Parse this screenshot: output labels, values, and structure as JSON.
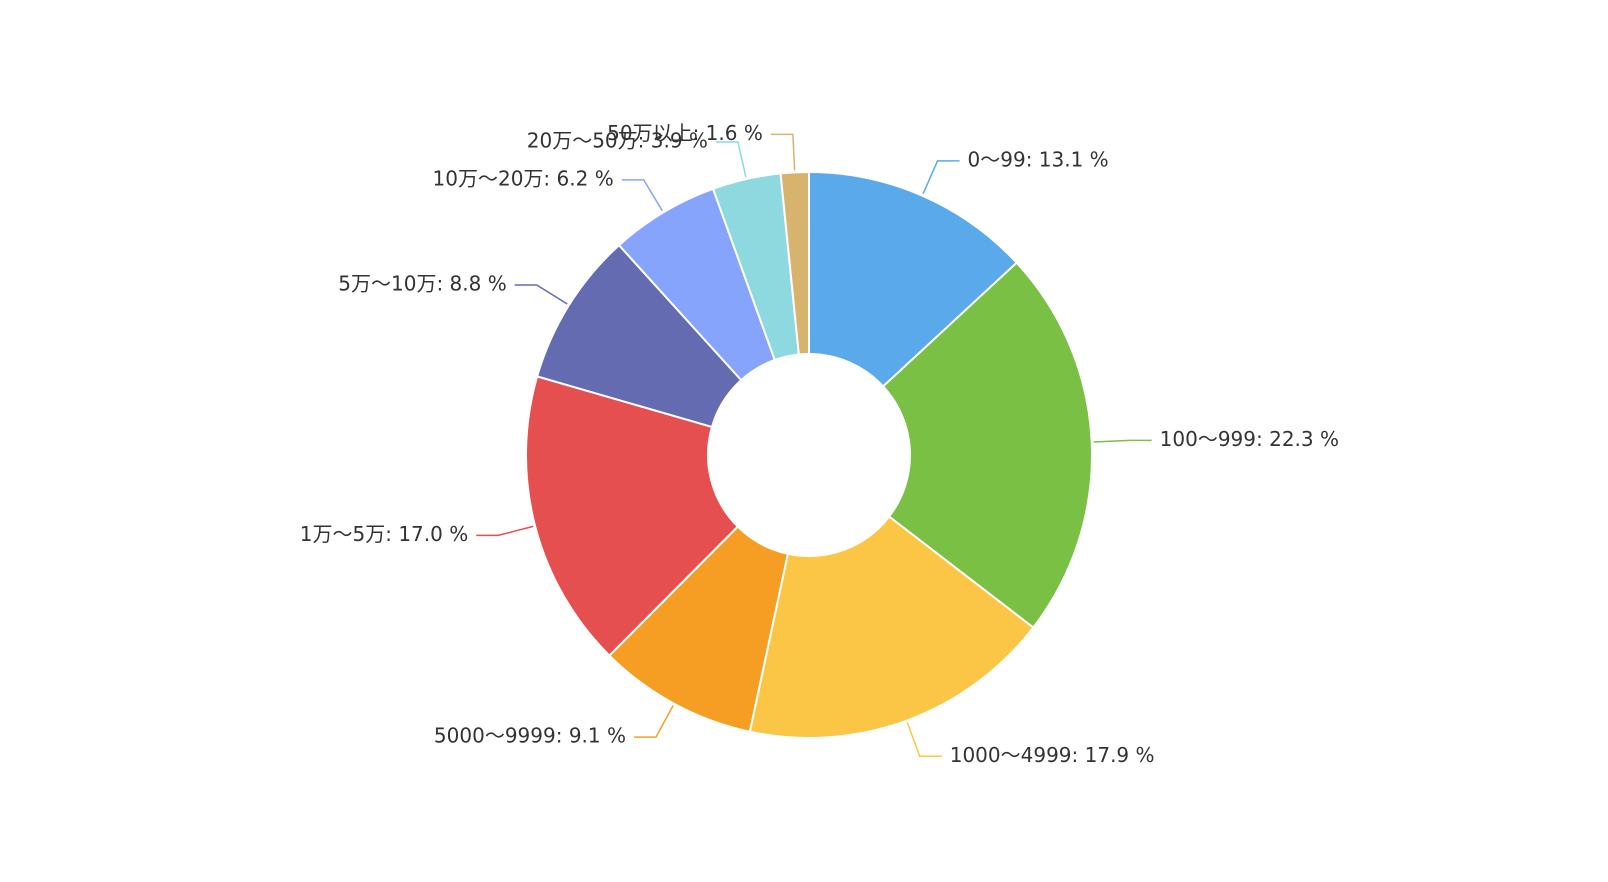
{
  "chart_data": {
    "type": "pie",
    "subtype": "donut",
    "title": "",
    "legend": "none",
    "label_format": "{name}: {value} %",
    "slices": [
      {
        "name": "0～99",
        "value": 13.1,
        "color": "#5aa9ea"
      },
      {
        "name": "100～999",
        "value": 22.3,
        "color": "#7ac044"
      },
      {
        "name": "1000～4999",
        "value": 17.9,
        "color": "#fbc545"
      },
      {
        "name": "5000～9999",
        "value": 9.1,
        "color": "#f59e23"
      },
      {
        "name": "1万～5万",
        "value": 17.0,
        "color": "#e64f4f"
      },
      {
        "name": "5万～10万",
        "value": 8.8,
        "color": "#656bb1"
      },
      {
        "name": "10万～20万",
        "value": 6.2,
        "color": "#87a4fc"
      },
      {
        "name": "20万～50万",
        "value": 3.9,
        "color": "#8ed9e0"
      },
      {
        "name": "50万以上",
        "value": 1.6,
        "color": "#d8b36e"
      }
    ]
  }
}
